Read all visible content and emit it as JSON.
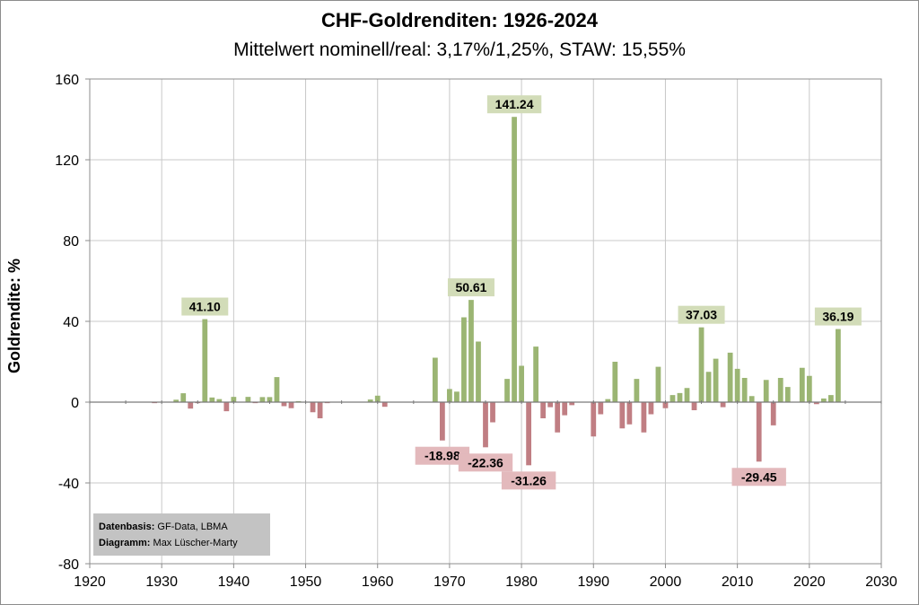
{
  "chart_data": {
    "type": "bar",
    "title": "CHF-Goldrenditen:  1926-2024",
    "subtitle": "Mittelwert nominell/real: 3,17%/1,25%, STAW: 15,55%",
    "ylabel": "Goldrendite: %",
    "xlabel": "",
    "xlim": [
      1920,
      2030
    ],
    "ylim": [
      -80,
      160
    ],
    "x_ticks": [
      "1920",
      "1930",
      "1940",
      "1950",
      "1960",
      "1970",
      "1980",
      "1990",
      "2000",
      "2010",
      "2020",
      "2030"
    ],
    "y_ticks": [
      "160",
      "120",
      "80",
      "40",
      "0",
      "-40",
      "-80"
    ],
    "grid": true,
    "positive_color": "#9bb573",
    "negative_color": "#c07e83",
    "label_positive_bg": "#d2dcb8",
    "label_negative_bg": "#e3b9bc",
    "source_box_bg": "#c3c3c3",
    "x": [
      1929,
      1932,
      1933,
      1934,
      1935,
      1936,
      1937,
      1938,
      1939,
      1940,
      1942,
      1943,
      1944,
      1945,
      1946,
      1947,
      1948,
      1949,
      1951,
      1952,
      1953,
      1959,
      1960,
      1961,
      1968,
      1969,
      1970,
      1971,
      1972,
      1973,
      1974,
      1975,
      1976,
      1978,
      1979,
      1980,
      1981,
      1982,
      1983,
      1984,
      1985,
      1986,
      1987,
      1990,
      1991,
      1992,
      1993,
      1994,
      1995,
      1996,
      1997,
      1998,
      1999,
      2000,
      2001,
      2002,
      2003,
      2004,
      2005,
      2006,
      2007,
      2008,
      2009,
      2010,
      2011,
      2012,
      2013,
      2014,
      2015,
      2016,
      2017,
      2019,
      2020,
      2021,
      2022,
      2023,
      2024
    ],
    "values": [
      -0.5,
      1.2,
      4.4,
      -3.2,
      -0.5,
      41.1,
      2.3,
      1.5,
      -4.5,
      2.6,
      2.6,
      -0.5,
      2.5,
      2.5,
      12.4,
      -2.0,
      -3.0,
      0.5,
      -5.0,
      -8.0,
      -0.5,
      1.3,
      3.2,
      -2.3,
      22.0,
      -18.98,
      6.5,
      5.2,
      42.0,
      50.61,
      30.0,
      -22.36,
      -10.0,
      11.5,
      141.24,
      18.0,
      -31.26,
      27.5,
      -8.0,
      -2.5,
      -15.0,
      -6.5,
      -1.5,
      -17.0,
      -6.0,
      1.5,
      20.0,
      -13.0,
      -11.0,
      11.5,
      -15.0,
      -6.0,
      17.5,
      -3.0,
      3.5,
      4.5,
      7.0,
      -4.0,
      37.03,
      15.0,
      21.5,
      -2.5,
      24.5,
      16.5,
      12.0,
      3.0,
      -29.45,
      11.0,
      -11.5,
      12.0,
      7.5,
      17.0,
      13.0,
      -1.0,
      1.8,
      3.5,
      36.19
    ],
    "labeled_points": [
      {
        "x": 1936,
        "value": 41.1,
        "text": "41.10"
      },
      {
        "x": 1969,
        "value": -18.98,
        "text": "-18.98"
      },
      {
        "x": 1973,
        "value": 50.61,
        "text": "50.61"
      },
      {
        "x": 1975,
        "value": -22.36,
        "text": "-22.36"
      },
      {
        "x": 1979,
        "value": 141.24,
        "text": "141.24"
      },
      {
        "x": 1981,
        "value": -31.26,
        "text": "-31.26"
      },
      {
        "x": 2005,
        "value": 37.03,
        "text": "37.03"
      },
      {
        "x": 2013,
        "value": -29.45,
        "text": "-29.45"
      },
      {
        "x": 2024,
        "value": 36.19,
        "text": "36.19"
      }
    ],
    "source_box": {
      "line1_label": "Datenbasis:",
      "line1_value": "GF-Data, LBMA",
      "line2_label": "Diagramm:",
      "line2_value": "Max Lüscher-Marty"
    }
  }
}
